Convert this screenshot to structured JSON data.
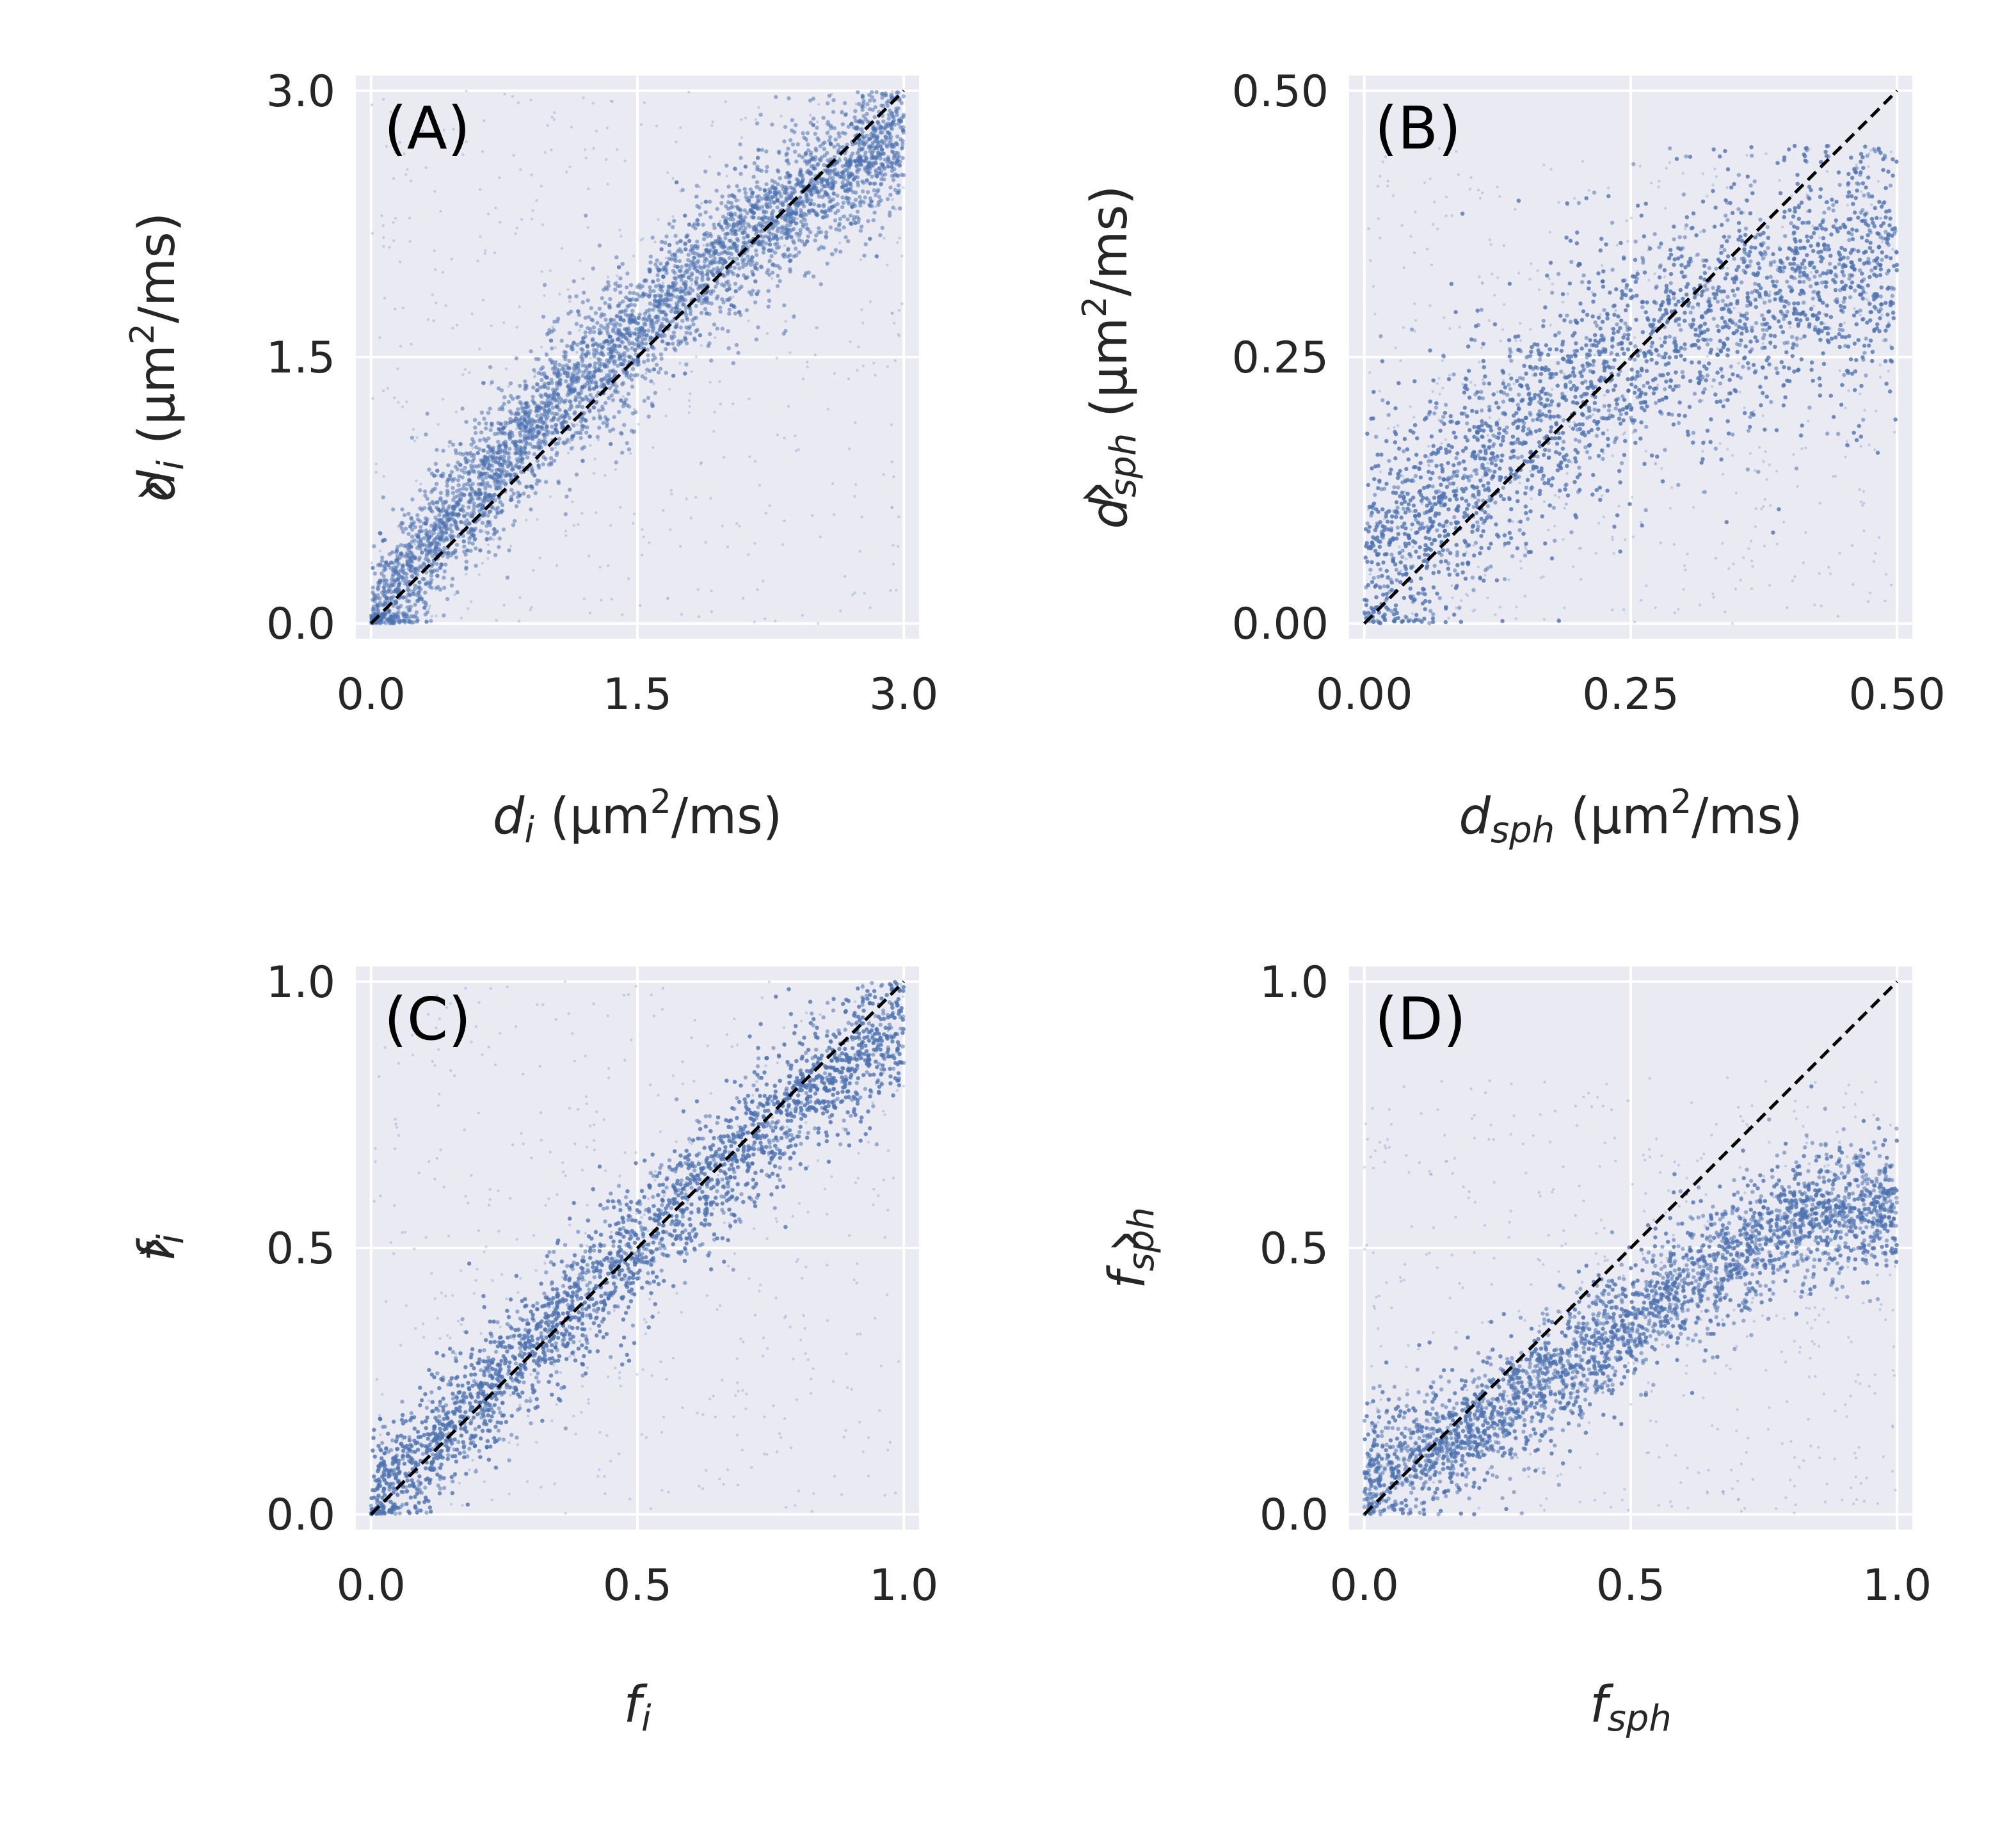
{
  "figure": {
    "background": "#ffffff",
    "axes_facecolor": "#eaeaf2",
    "grid_color": "#ffffff",
    "point_color": "#4c72b0",
    "identity_line_color": "#000000"
  },
  "chart_data": [
    {
      "id": "A",
      "type": "scatter",
      "panel_label": "(A)",
      "xlim": [
        0.0,
        3.0
      ],
      "ylim": [
        0.0,
        3.0
      ],
      "xticks": [
        "0.0",
        "1.5",
        "3.0"
      ],
      "yticks": [
        "0.0",
        "1.5",
        "3.0"
      ],
      "xlabel": {
        "symbol": "d",
        "sub": "i",
        "unit_pre": " (μm",
        "unit_sup": "2",
        "unit_post": "/ms)"
      },
      "ylabel": {
        "hat": "^",
        "symbol": "d",
        "sub": "i",
        "unit_pre": " (μm",
        "unit_sup": "2",
        "unit_post": "/ms)"
      },
      "identity_line": {
        "from": [
          0.0,
          0.0
        ],
        "to": [
          3.0,
          3.0
        ],
        "style": "dashed"
      },
      "grid": true,
      "scatter_trend": {
        "x": [
          0.0,
          0.5,
          1.0,
          1.5,
          2.0,
          2.5,
          3.0
        ],
        "y": [
          0.0,
          0.65,
          1.2,
          1.65,
          2.1,
          2.45,
          2.75
        ],
        "spread": 0.28,
        "clip_y": [
          0.0,
          3.0
        ]
      }
    },
    {
      "id": "B",
      "type": "scatter",
      "panel_label": "(B)",
      "xlim": [
        0.0,
        0.5
      ],
      "ylim": [
        0.0,
        0.5
      ],
      "xticks": [
        "0.00",
        "0.25",
        "0.50"
      ],
      "yticks": [
        "0.00",
        "0.25",
        "0.50"
      ],
      "xlabel": {
        "symbol": "d",
        "sub": "sph",
        "unit_pre": " (μm",
        "unit_sup": "2",
        "unit_post": "/ms)"
      },
      "ylabel": {
        "hat": "^",
        "symbol": "d",
        "sub": "sph",
        "unit_pre": " (μm",
        "unit_sup": "2",
        "unit_post": "/ms)"
      },
      "identity_line": {
        "from": [
          0.0,
          0.0
        ],
        "to": [
          0.5,
          0.5
        ],
        "style": "dashed"
      },
      "grid": true,
      "scatter_trend": {
        "x": [
          0.0,
          0.1,
          0.2,
          0.3,
          0.4,
          0.5
        ],
        "y": [
          0.05,
          0.14,
          0.22,
          0.28,
          0.32,
          0.34
        ],
        "spread": 0.085,
        "clip_y": [
          0.0,
          0.45
        ]
      }
    },
    {
      "id": "C",
      "type": "scatter",
      "panel_label": "(C)",
      "xlim": [
        0.0,
        1.0
      ],
      "ylim": [
        0.0,
        1.0
      ],
      "xticks": [
        "0.0",
        "0.5",
        "1.0"
      ],
      "yticks": [
        "0.0",
        "0.5",
        "1.0"
      ],
      "xlabel": {
        "symbol": "f",
        "sub": "i",
        "unit_pre": "",
        "unit_sup": "",
        "unit_post": ""
      },
      "ylabel": {
        "hat": "^",
        "symbol": "f",
        "sub": "i",
        "unit_pre": "",
        "unit_sup": "",
        "unit_post": ""
      },
      "identity_line": {
        "from": [
          0.0,
          0.0
        ],
        "to": [
          1.0,
          1.0
        ],
        "style": "dashed"
      },
      "grid": true,
      "scatter_trend": {
        "x": [
          0.0,
          0.2,
          0.4,
          0.6,
          0.8,
          1.0
        ],
        "y": [
          0.02,
          0.22,
          0.41,
          0.6,
          0.78,
          0.92
        ],
        "spread": 0.09,
        "clip_y": [
          0.0,
          1.0
        ]
      }
    },
    {
      "id": "D",
      "type": "scatter",
      "panel_label": "(D)",
      "xlim": [
        0.0,
        1.0
      ],
      "ylim": [
        0.0,
        1.0
      ],
      "xticks": [
        "0.0",
        "0.5",
        "1.0"
      ],
      "yticks": [
        "0.0",
        "0.5",
        "1.0"
      ],
      "xlabel": {
        "symbol": "f",
        "sub": "sph",
        "unit_pre": "",
        "unit_sup": "",
        "unit_post": ""
      },
      "ylabel": {
        "hat": "^",
        "symbol": "f",
        "sub": "sph",
        "unit_pre": "",
        "unit_sup": "",
        "unit_post": ""
      },
      "identity_line": {
        "from": [
          0.0,
          0.0
        ],
        "to": [
          1.0,
          1.0
        ],
        "style": "dashed"
      },
      "grid": true,
      "scatter_trend": {
        "x": [
          0.0,
          0.2,
          0.4,
          0.6,
          0.8,
          0.95
        ],
        "y": [
          0.07,
          0.16,
          0.28,
          0.43,
          0.55,
          0.58
        ],
        "spread": 0.085,
        "clip_y": [
          0.0,
          0.82
        ]
      }
    }
  ]
}
